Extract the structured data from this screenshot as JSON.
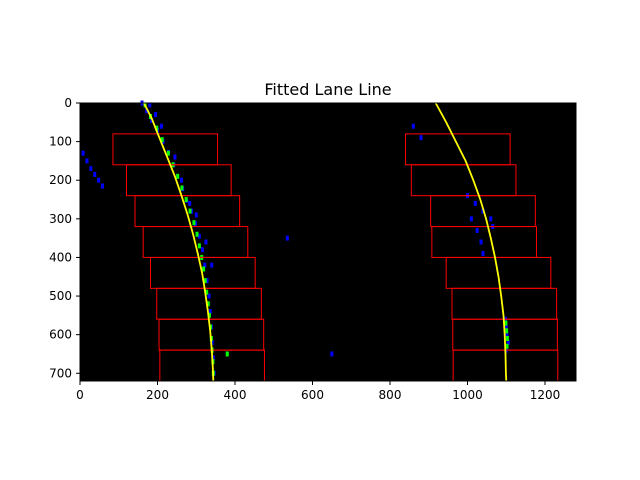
{
  "chart_data": {
    "type": "scatter",
    "title": "Fitted Lane Line",
    "xlim": [
      0,
      1280
    ],
    "ylim": [
      720,
      0
    ],
    "x_ticks": [
      0,
      200,
      400,
      600,
      800,
      1000,
      1200
    ],
    "y_ticks": [
      0,
      100,
      200,
      300,
      400,
      500,
      600,
      700
    ],
    "background_color": "#000000",
    "colors": {
      "left_lane_pixels": "#0000ff",
      "right_lane_pixels": "#0000ff",
      "highlighted_pixels": "#00ff00",
      "fit_line": "#ffff00",
      "search_window": "#ff0000"
    },
    "series": [
      {
        "kind": "fit_line",
        "points": [
          [
            165,
            0
          ],
          [
            185,
            40
          ],
          [
            205,
            90
          ],
          [
            225,
            140
          ],
          [
            245,
            190
          ],
          [
            262,
            240
          ],
          [
            278,
            290
          ],
          [
            292,
            340
          ],
          [
            304,
            390
          ],
          [
            315,
            440
          ],
          [
            323,
            490
          ],
          [
            330,
            540
          ],
          [
            336,
            590
          ],
          [
            340,
            640
          ],
          [
            343,
            690
          ],
          [
            344,
            720
          ]
        ]
      },
      {
        "kind": "fit_line",
        "points": [
          [
            918,
            0
          ],
          [
            945,
            50
          ],
          [
            970,
            100
          ],
          [
            995,
            150
          ],
          [
            1015,
            200
          ],
          [
            1033,
            250
          ],
          [
            1048,
            300
          ],
          [
            1060,
            350
          ],
          [
            1071,
            400
          ],
          [
            1080,
            450
          ],
          [
            1087,
            500
          ],
          [
            1093,
            550
          ],
          [
            1096,
            600
          ],
          [
            1098,
            650
          ],
          [
            1099,
            700
          ],
          [
            1100,
            720
          ]
        ]
      }
    ],
    "windows": [
      [
        85,
        80,
        355,
        160
      ],
      [
        120,
        160,
        390,
        240
      ],
      [
        142,
        240,
        412,
        320
      ],
      [
        163,
        320,
        433,
        400
      ],
      [
        182,
        400,
        452,
        480
      ],
      [
        198,
        480,
        468,
        560
      ],
      [
        204,
        560,
        474,
        640
      ],
      [
        206,
        640,
        476,
        720
      ],
      [
        840,
        80,
        1110,
        160
      ],
      [
        855,
        160,
        1125,
        240
      ],
      [
        905,
        240,
        1175,
        320
      ],
      [
        908,
        320,
        1178,
        400
      ],
      [
        945,
        400,
        1215,
        480
      ],
      [
        960,
        480,
        1230,
        560
      ],
      [
        962,
        560,
        1232,
        640
      ],
      [
        963,
        640,
        1233,
        720
      ]
    ],
    "pixels_blue": [
      [
        8,
        130
      ],
      [
        18,
        150
      ],
      [
        28,
        170
      ],
      [
        38,
        185
      ],
      [
        48,
        200
      ],
      [
        58,
        215
      ],
      [
        160,
        0
      ],
      [
        172,
        20
      ],
      [
        185,
        45
      ],
      [
        200,
        70
      ],
      [
        214,
        100
      ],
      [
        228,
        128
      ],
      [
        242,
        160
      ],
      [
        252,
        190
      ],
      [
        265,
        222
      ],
      [
        275,
        252
      ],
      [
        288,
        280
      ],
      [
        298,
        312
      ],
      [
        308,
        345
      ],
      [
        316,
        380
      ],
      [
        322,
        420
      ],
      [
        328,
        460
      ],
      [
        333,
        500
      ],
      [
        336,
        540
      ],
      [
        339,
        580
      ],
      [
        341,
        620
      ],
      [
        344,
        660
      ],
      [
        346,
        700
      ],
      [
        180,
        5
      ],
      [
        195,
        30
      ],
      [
        210,
        60
      ],
      [
        245,
        140
      ],
      [
        262,
        200
      ],
      [
        283,
        260
      ],
      [
        300,
        290
      ],
      [
        325,
        360
      ],
      [
        340,
        420
      ],
      [
        535,
        350
      ],
      [
        650,
        650
      ],
      [
        860,
        60
      ],
      [
        880,
        90
      ],
      [
        1000,
        240
      ],
      [
        1020,
        260
      ],
      [
        1040,
        280
      ],
      [
        1060,
        300
      ],
      [
        1065,
        320
      ],
      [
        1010,
        300
      ],
      [
        1025,
        330
      ],
      [
        1035,
        360
      ],
      [
        1040,
        390
      ],
      [
        1098,
        560
      ],
      [
        1100,
        580
      ],
      [
        1102,
        600
      ],
      [
        1105,
        620
      ],
      [
        1100,
        640
      ]
    ],
    "pixels_green": [
      [
        168,
        5
      ],
      [
        182,
        35
      ],
      [
        198,
        65
      ],
      [
        212,
        95
      ],
      [
        228,
        130
      ],
      [
        240,
        160
      ],
      [
        252,
        190
      ],
      [
        263,
        220
      ],
      [
        274,
        250
      ],
      [
        284,
        280
      ],
      [
        294,
        310
      ],
      [
        302,
        340
      ],
      [
        308,
        370
      ],
      [
        314,
        400
      ],
      [
        319,
        430
      ],
      [
        323,
        460
      ],
      [
        327,
        490
      ],
      [
        331,
        520
      ],
      [
        334,
        550
      ],
      [
        337,
        580
      ],
      [
        339,
        610
      ],
      [
        341,
        640
      ],
      [
        343,
        670
      ],
      [
        344,
        700
      ],
      [
        380,
        650
      ],
      [
        1099,
        570
      ],
      [
        1101,
        590
      ],
      [
        1103,
        610
      ],
      [
        1102,
        630
      ]
    ]
  }
}
